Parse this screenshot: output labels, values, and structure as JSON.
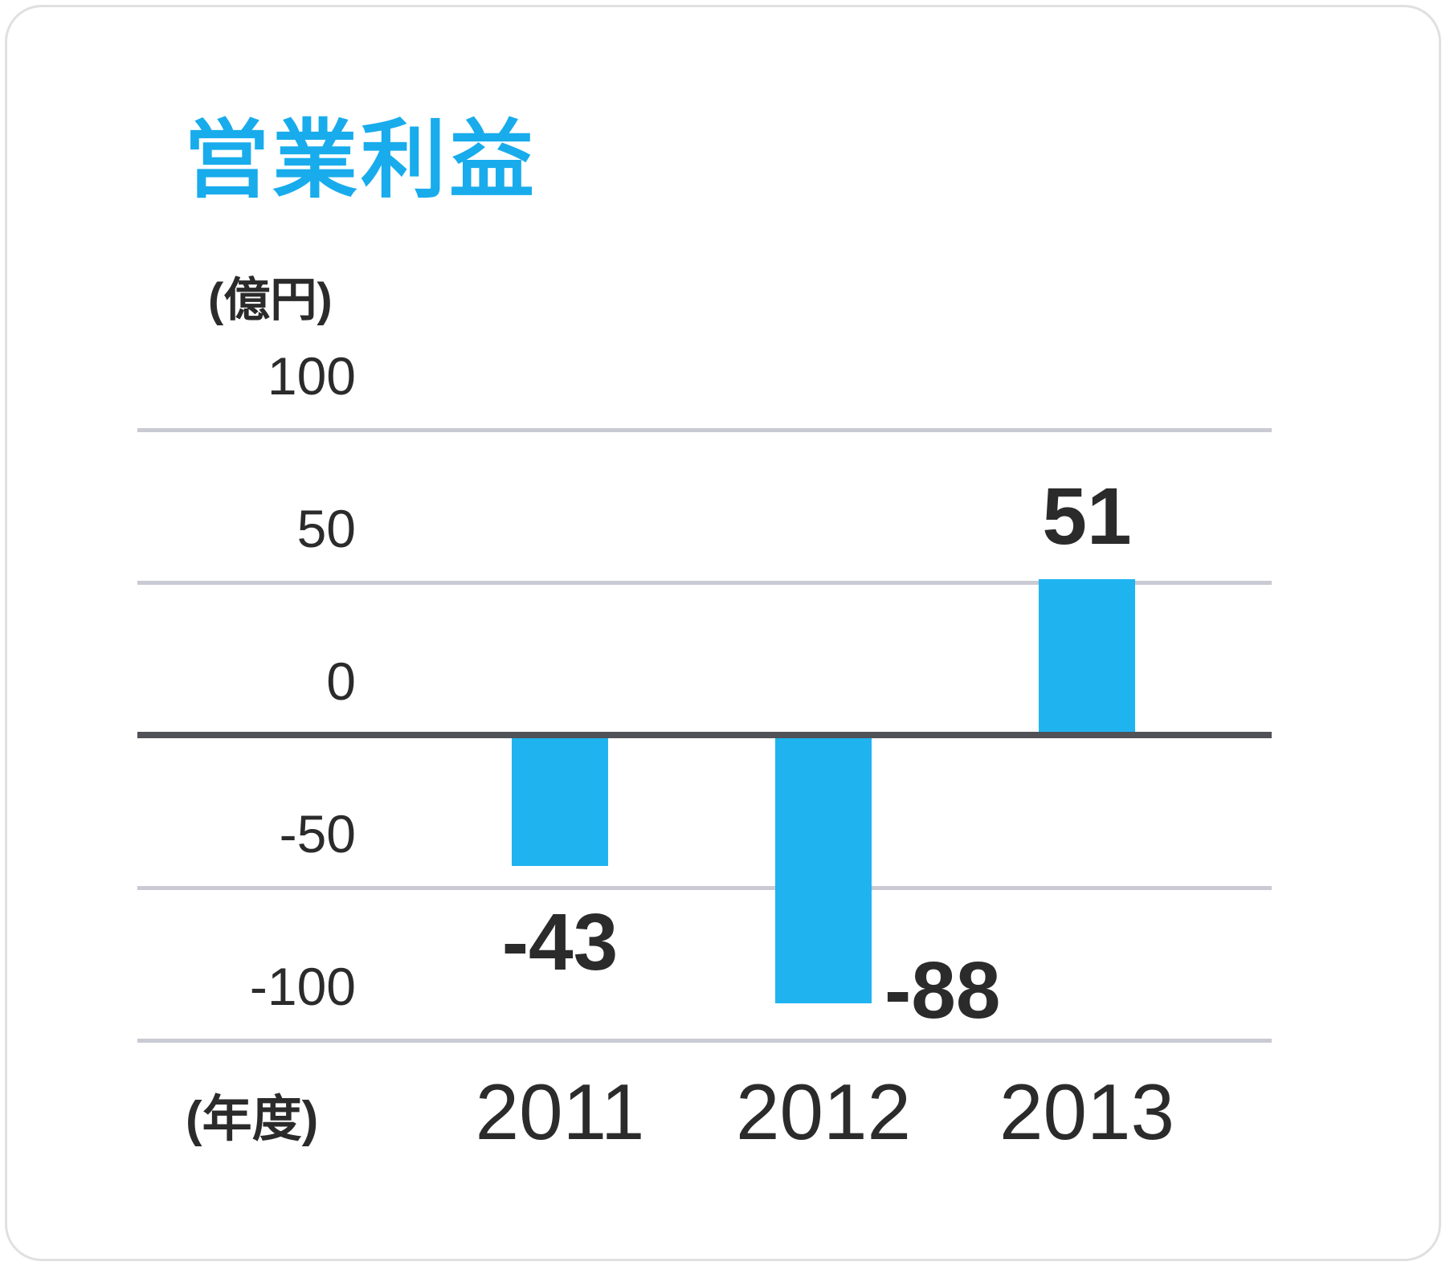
{
  "chart_data": {
    "type": "bar",
    "title": "営業利益",
    "unit_label": "(億円)",
    "x_axis_label": "(年度)",
    "categories": [
      "2011",
      "2012",
      "2013"
    ],
    "values": [
      -43,
      -88,
      51
    ],
    "value_labels": [
      "-43",
      "-88",
      "51"
    ],
    "y_ticks": [
      100,
      50,
      0,
      -50,
      -100
    ],
    "ylim": [
      -115,
      130
    ],
    "grid": true,
    "legend": "none",
    "colors": {
      "bar": "#1fb4f0",
      "title": "#18acec",
      "text": "#2b2b2b",
      "gridline": "#c9cad3",
      "zero_line": "#505257",
      "card_border": "#e0e0e0",
      "background": "#ffffff"
    }
  }
}
